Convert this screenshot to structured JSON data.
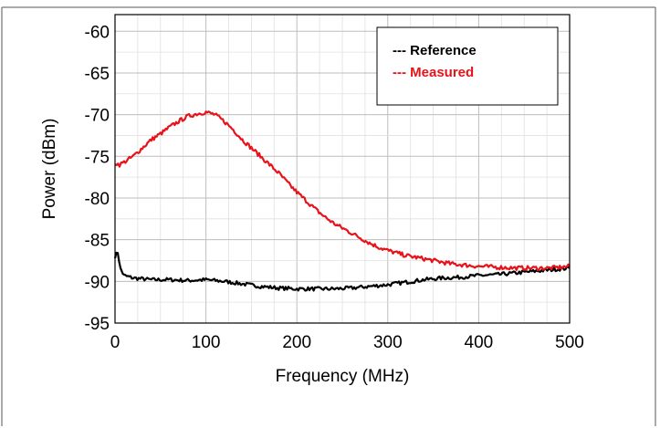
{
  "chart_data": {
    "type": "line",
    "title": "",
    "xlabel": "Frequency (MHz)",
    "ylabel": "Power (dBm)",
    "xlim": [
      0,
      500
    ],
    "ylim": [
      -95,
      -58
    ],
    "xticks": [
      0,
      100,
      200,
      300,
      400,
      500
    ],
    "yticks": [
      -60,
      -65,
      -70,
      -75,
      -80,
      -85,
      -90,
      -95
    ],
    "grid": true,
    "legend_position": "top-right",
    "series": [
      {
        "name": "--- Reference",
        "color": "#000000",
        "x": [
          0,
          3,
          6,
          10,
          20,
          40,
          60,
          80,
          100,
          120,
          140,
          160,
          180,
          200,
          220,
          240,
          260,
          280,
          300,
          320,
          340,
          360,
          380,
          400,
          420,
          440,
          460,
          480,
          500
        ],
        "y": [
          -87,
          -86.5,
          -88.5,
          -89.3,
          -89.6,
          -89.8,
          -89.8,
          -89.9,
          -89.8,
          -90.0,
          -90.3,
          -90.6,
          -90.8,
          -90.9,
          -90.9,
          -90.9,
          -90.8,
          -90.6,
          -90.4,
          -90.1,
          -89.8,
          -89.6,
          -89.5,
          -89.3,
          -89.2,
          -89.0,
          -88.8,
          -88.6,
          -88.4
        ]
      },
      {
        "name": "--- Measured",
        "color": "#e8131a",
        "x": [
          0,
          5,
          10,
          20,
          30,
          40,
          50,
          60,
          70,
          80,
          90,
          100,
          110,
          120,
          130,
          140,
          150,
          160,
          170,
          180,
          190,
          200,
          210,
          220,
          230,
          240,
          250,
          260,
          270,
          280,
          290,
          300,
          310,
          320,
          330,
          340,
          350,
          360,
          370,
          380,
          390,
          400,
          420,
          440,
          460,
          480,
          500
        ],
        "y": [
          -75.8,
          -76,
          -75.7,
          -75.0,
          -74.0,
          -73.0,
          -72.3,
          -71.5,
          -70.8,
          -70.2,
          -69.9,
          -69.7,
          -70.0,
          -70.8,
          -71.8,
          -73.0,
          -74.0,
          -75.0,
          -76.0,
          -77.0,
          -78.2,
          -79.3,
          -80.3,
          -81.3,
          -82.2,
          -83.0,
          -83.6,
          -84.2,
          -84.8,
          -85.4,
          -85.9,
          -86.3,
          -86.6,
          -86.9,
          -87.1,
          -87.3,
          -87.5,
          -87.7,
          -87.9,
          -88.0,
          -88.1,
          -88.2,
          -88.3,
          -88.4,
          -88.4,
          -88.4,
          -88.2
        ]
      }
    ]
  }
}
